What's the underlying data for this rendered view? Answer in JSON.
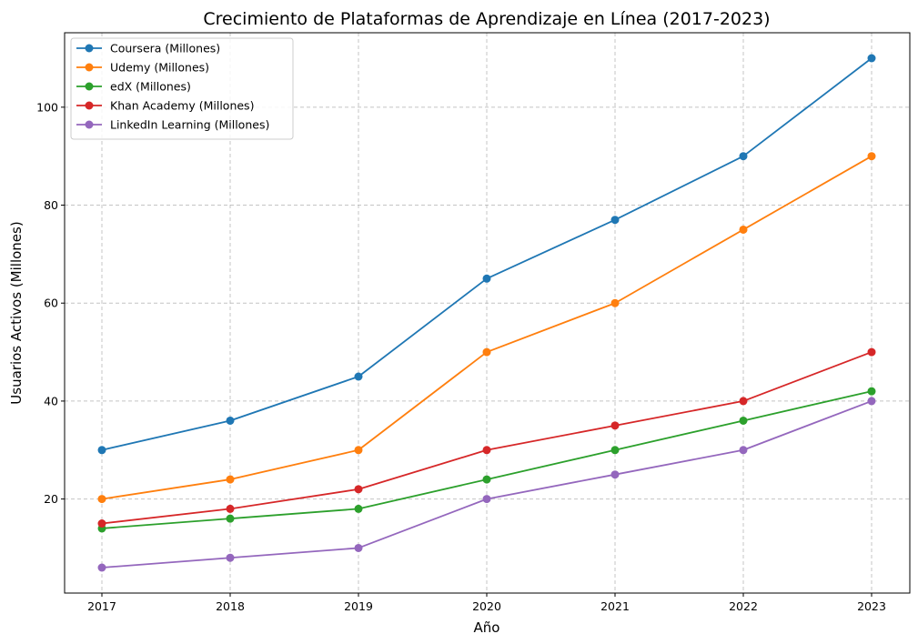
{
  "chart_data": {
    "type": "line",
    "title": "Crecimiento de Plataformas de Aprendizaje en Línea (2017-2023)",
    "xlabel": "Año",
    "ylabel": "Usuarios Activos (Millones)",
    "categories": [
      "2017",
      "2018",
      "2019",
      "2020",
      "2021",
      "2022",
      "2023"
    ],
    "y_ticks": [
      "20",
      "40",
      "60",
      "80",
      "100"
    ],
    "ylim": [
      0.8,
      115.2
    ],
    "grid": true,
    "legend_position": "top-left",
    "series": [
      {
        "name": "Coursera (Millones)",
        "color": "#1f77b4",
        "values": [
          30,
          36,
          45,
          65,
          77,
          90,
          110
        ]
      },
      {
        "name": "Udemy (Millones)",
        "color": "#ff7f0e",
        "values": [
          20,
          24,
          30,
          50,
          60,
          75,
          90
        ]
      },
      {
        "name": "edX (Millones)",
        "color": "#2ca02c",
        "values": [
          14,
          16,
          18,
          24,
          30,
          36,
          42
        ]
      },
      {
        "name": "Khan Academy (Millones)",
        "color": "#d62728",
        "values": [
          15,
          18,
          22,
          30,
          35,
          40,
          50
        ]
      },
      {
        "name": "LinkedIn Learning (Millones)",
        "color": "#9467bd",
        "values": [
          6,
          8,
          10,
          20,
          25,
          30,
          40
        ]
      }
    ]
  }
}
